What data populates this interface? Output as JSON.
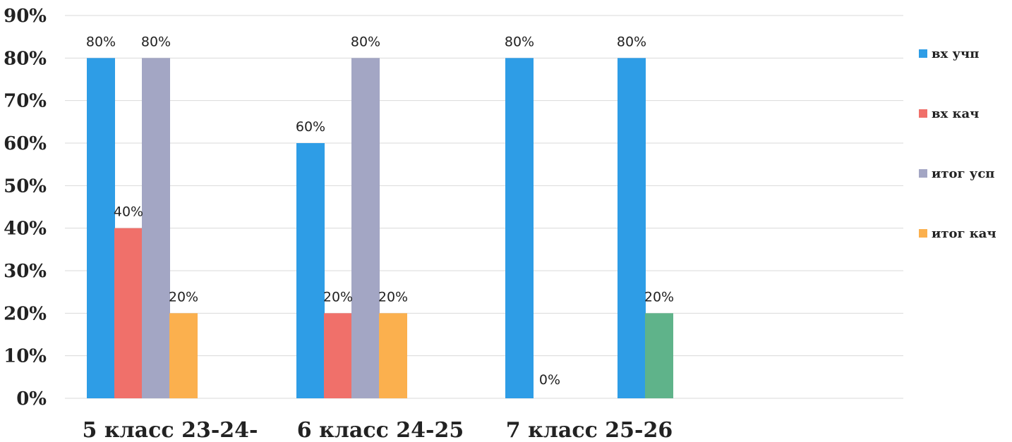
{
  "chart_data": {
    "type": "bar",
    "categories": [
      "5 класс 23-24-",
      "6 класс 24-25",
      "7 класс 25-26",
      ""
    ],
    "series": [
      {
        "name": "вх учп",
        "color": "#2e9de6",
        "values": [
          80,
          60,
          80,
          80
        ],
        "labels": [
          "80%",
          "60%",
          "80%",
          "80%"
        ]
      },
      {
        "name": "вх кач",
        "color": "#f0706a",
        "values": [
          40,
          20,
          0,
          null
        ],
        "labels": [
          "40%",
          "20%",
          "0%",
          ""
        ]
      },
      {
        "name": "итог усп",
        "color": "#a3a6c4",
        "values": [
          80,
          80,
          null,
          null
        ],
        "labels": [
          "80%",
          "80%",
          "",
          ""
        ]
      },
      {
        "name": "итог кач",
        "color": "#fbb04e",
        "values": [
          20,
          20,
          null,
          20
        ],
        "labels": [
          "20%",
          "20%",
          "",
          "20%"
        ]
      }
    ],
    "yticks": [
      "0%",
      "10%",
      "20%",
      "30%",
      "40%",
      "50%",
      "60%",
      "70%",
      "80%",
      "90%"
    ],
    "ylim": [
      0,
      90
    ],
    "grid": true,
    "legend_position": "right",
    "special_colors": {
      "third_group_itog_kach": "#5fb38a"
    }
  }
}
